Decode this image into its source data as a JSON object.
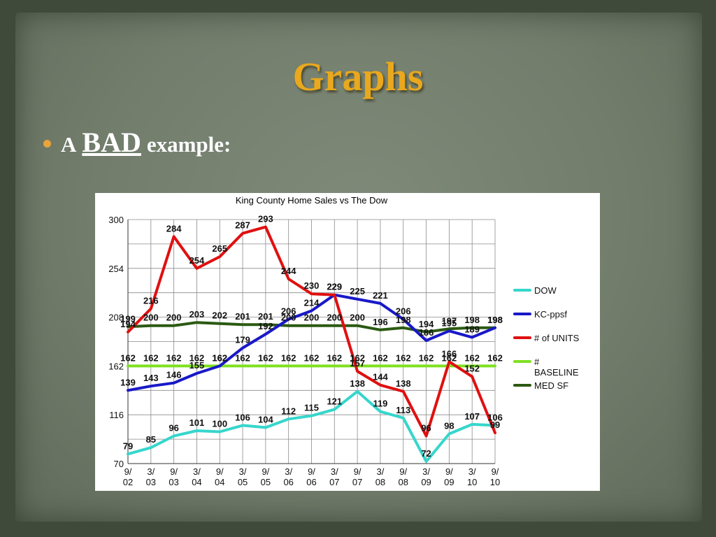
{
  "slide": {
    "title": "Graphs",
    "bullet": {
      "prefix": "A",
      "emphasis": "BAD",
      "suffix": "example:"
    }
  },
  "colors": {
    "title": "#e9a81d",
    "bullet_dot": "#e8a53a",
    "dow": "#36d6cc",
    "kc_ppsf": "#1818c8",
    "units": "#e01010",
    "baseline": "#7fe020",
    "med_sf": "#2b5a12"
  },
  "chart_data": {
    "type": "line",
    "title": "King County Home Sales vs The Dow",
    "xlabel": "",
    "ylabel": "",
    "ylim": [
      70,
      300
    ],
    "yticks": [
      70,
      116,
      162,
      208,
      254,
      300
    ],
    "grid": true,
    "legend_position": "right",
    "categories": [
      "9/\n02",
      "3/\n03",
      "9/\n03",
      "3/\n04",
      "9/\n04",
      "3/\n05",
      "9/\n05",
      "3/\n06",
      "9/\n06",
      "3/\n07",
      "9/\n07",
      "3/\n08",
      "9/\n08",
      "3/\n09",
      "9/\n09",
      "3/\n10",
      "9/\n10"
    ],
    "series": [
      {
        "name": "DOW",
        "color": "#36d6cc",
        "values": [
          79,
          85,
          96,
          101,
          100,
          106,
          104,
          112,
          115,
          121,
          138,
          119,
          113,
          72,
          98,
          107,
          106
        ],
        "labels": [
          "79",
          "85",
          "96",
          "101",
          "100",
          "106",
          "104",
          "112",
          "115",
          "121",
          "138",
          "119",
          "113",
          "72",
          "98",
          "107",
          "106"
        ]
      },
      {
        "name": "KC-ppsf",
        "color": "#1818c8",
        "values": [
          139,
          143,
          146,
          155,
          162,
          179,
          192,
          206,
          214,
          229,
          225,
          221,
          206,
          186,
          195,
          189,
          198
        ],
        "labels": [
          "139",
          "143",
          "146",
          "155",
          "162",
          "179",
          "192",
          "206",
          "214",
          "229",
          "225",
          "221",
          "206",
          "186",
          "195",
          "189",
          "198"
        ]
      },
      {
        "name": "# of UNITS",
        "color": "#e01010",
        "values": [
          194,
          216,
          284,
          254,
          265,
          287,
          293,
          244,
          230,
          229,
          157,
          144,
          138,
          96,
          166,
          152,
          99
        ],
        "labels": [
          "194",
          "216",
          "284",
          "254",
          "265",
          "287",
          "293",
          "244",
          "230",
          "229",
          "157",
          "144",
          "138",
          "96",
          "166",
          "152",
          "99"
        ]
      },
      {
        "name": "# BASELINE",
        "color": "#7fe020",
        "values": [
          162,
          162,
          162,
          162,
          162,
          162,
          162,
          162,
          162,
          162,
          162,
          162,
          162,
          162,
          162,
          162,
          162
        ],
        "labels": [
          "162",
          "162",
          "162",
          "162",
          "162",
          "162",
          "162",
          "162",
          "162",
          "162",
          "162",
          "162",
          "162",
          "162",
          "162",
          "162",
          "162"
        ]
      },
      {
        "name": "MED SF",
        "color": "#2b5a12",
        "values": [
          199,
          200,
          200,
          203,
          202,
          201,
          201,
          200,
          200,
          200,
          200,
          196,
          198,
          194,
          197,
          198,
          198
        ],
        "labels": [
          "199",
          "200",
          "200",
          "203",
          "202",
          "201",
          "201",
          "200",
          "200",
          "200",
          "200",
          "196",
          "198",
          "194",
          "197",
          "198",
          "198"
        ]
      }
    ]
  }
}
